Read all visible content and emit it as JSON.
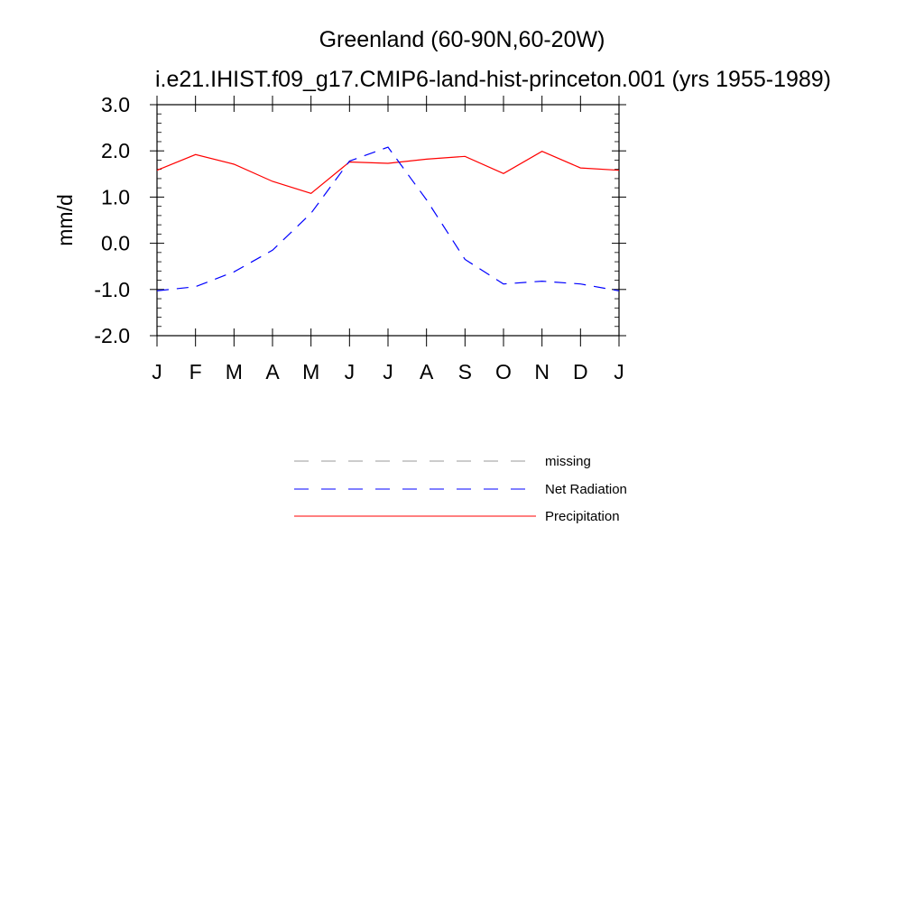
{
  "chart_data": {
    "type": "line",
    "title": "Greenland (60-90N,60-20W)",
    "subtitle": "i.e21.IHIST.f09_g17.CMIP6-land-hist-princeton.001 (yrs 1955-1989)",
    "ylabel": "mm/d",
    "xlabel": "",
    "categories": [
      "J",
      "F",
      "M",
      "A",
      "M",
      "J",
      "J",
      "A",
      "S",
      "O",
      "N",
      "D",
      "J"
    ],
    "ylim": [
      -2.0,
      3.0
    ],
    "yticks": [
      "3.0",
      "2.0",
      "1.0",
      "0.0",
      "-1.0",
      "-2.0"
    ],
    "ytick_values": [
      3.0,
      2.0,
      1.0,
      0.0,
      -1.0,
      -2.0
    ],
    "grid": false,
    "legend_position": "bottom",
    "series": [
      {
        "name": "Precipitation",
        "color": "#ff0000",
        "style": "solid",
        "values": [
          1.58,
          1.92,
          1.71,
          1.34,
          1.08,
          1.76,
          1.73,
          1.82,
          1.88,
          1.51,
          1.99,
          1.63,
          1.58
        ]
      },
      {
        "name": "Net Radiation",
        "color": "#0000ff",
        "style": "dashed",
        "values": [
          -1.03,
          -0.94,
          -0.62,
          -0.15,
          0.65,
          1.78,
          2.08,
          0.94,
          -0.35,
          -0.88,
          -0.82,
          -0.88,
          -1.03
        ]
      }
    ],
    "legend": [
      {
        "label": "missing",
        "color": "#999999",
        "style": "dashed"
      },
      {
        "label": "Net Radiation",
        "color": "#0000ff",
        "style": "dashed"
      },
      {
        "label": "Precipitation",
        "color": "#ff0000",
        "style": "solid"
      }
    ]
  }
}
